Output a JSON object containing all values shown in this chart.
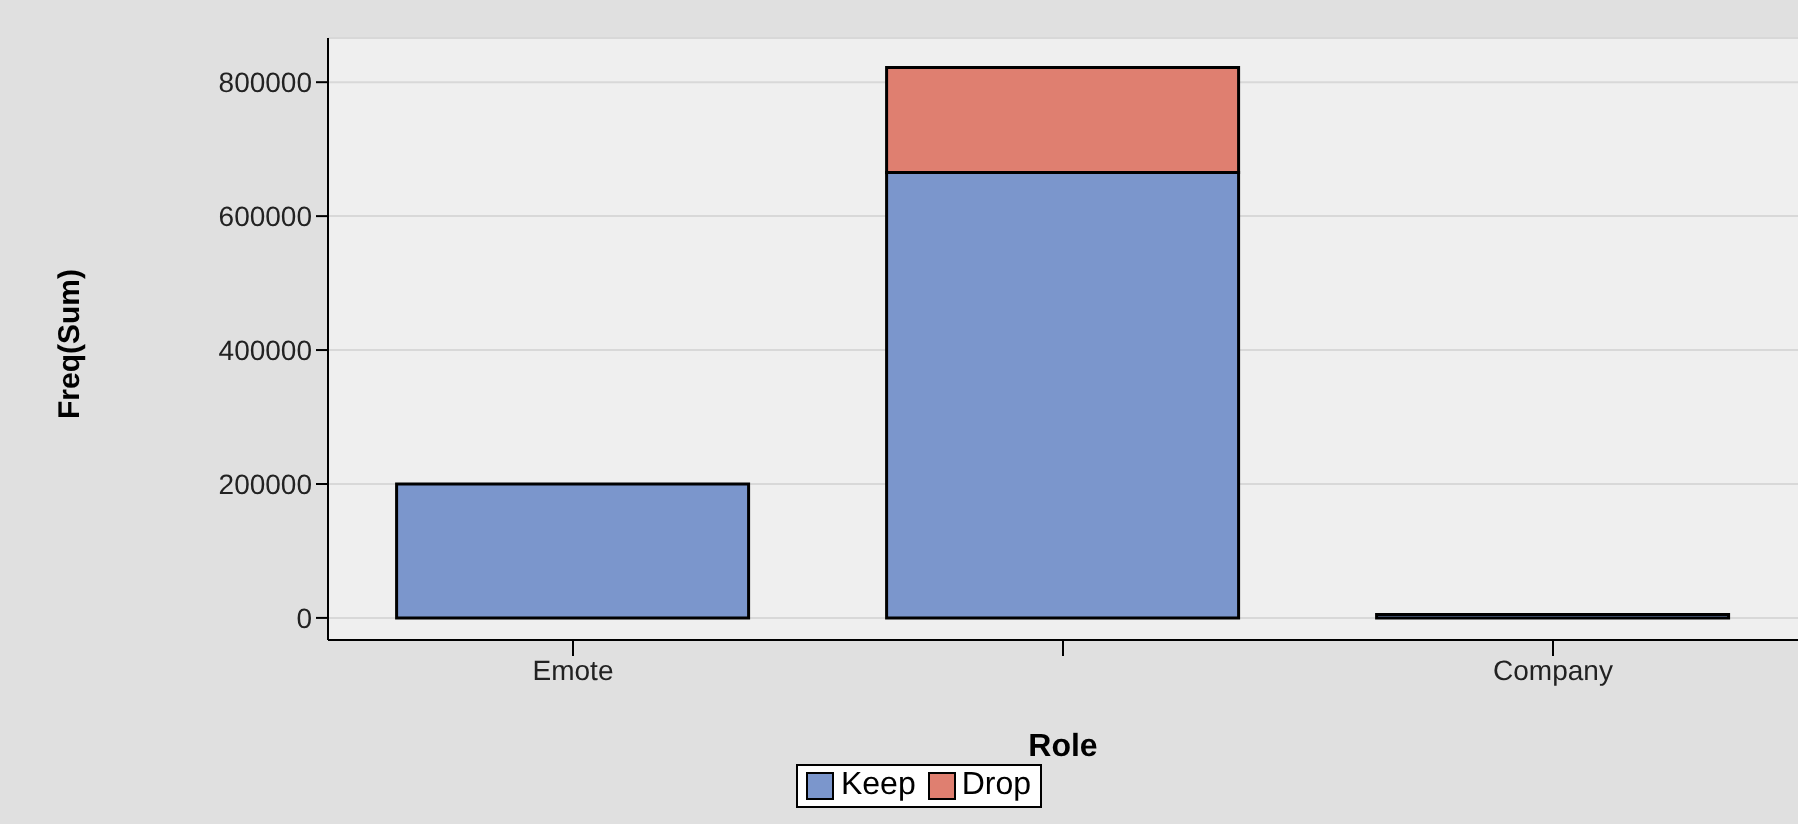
{
  "chart_data": {
    "type": "bar",
    "xlabel": "Role",
    "ylabel": "Freq(Sum)",
    "categories": [
      "Emote",
      null,
      "Company"
    ],
    "stacked": true,
    "series": [
      {
        "name": "Keep",
        "color": "#7b96cc",
        "values": [
          200000,
          665000,
          5000
        ]
      },
      {
        "name": "Drop",
        "color": "#df7f70",
        "values": [
          0,
          157000,
          0
        ]
      }
    ],
    "ylim": [
      -33000,
      866000
    ],
    "yticks": [
      0,
      200000,
      400000,
      600000,
      800000
    ],
    "grid": "y",
    "legend": "bottom"
  }
}
